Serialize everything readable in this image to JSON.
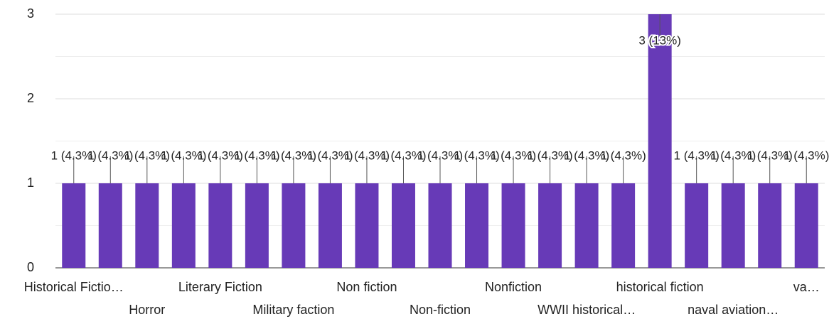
{
  "chart_data": {
    "type": "bar",
    "categories": [
      "Historical Fictio…",
      null,
      "Horror",
      null,
      "Literary Fiction",
      null,
      "Military faction",
      null,
      "Non fiction",
      null,
      "Non-fiction",
      null,
      "Nonfiction",
      null,
      "WWII historical…",
      null,
      "historical fiction",
      null,
      "naval aviation…",
      null,
      "va…"
    ],
    "values": [
      1,
      1,
      1,
      1,
      1,
      1,
      1,
      1,
      1,
      1,
      1,
      1,
      1,
      1,
      1,
      1,
      3,
      1,
      1,
      1,
      1
    ],
    "value_labels": [
      "1 (4.3%)",
      "1 (4.3%)",
      "1 (4.3%)",
      "1 (4.3%)",
      "1 (4.3%)",
      "1 (4.3%)",
      "1 (4.3%)",
      "1 (4.3%)",
      "1 (4.3%)",
      "1 (4.3%)",
      "1 (4.3%)",
      "1 (4.3%)",
      "1 (4.3%)",
      "1 (4.3%)",
      "1 (4.3%)",
      "1 (4.3%)",
      "3 (13%)",
      "1 (4.3%)",
      "1 (4.3%)",
      "1 (4.3%)",
      "1 (4.3%)"
    ],
    "color": "#673ab7",
    "ylim": [
      0,
      3
    ],
    "yticks": [
      0,
      1,
      2,
      3
    ],
    "grid": true
  }
}
